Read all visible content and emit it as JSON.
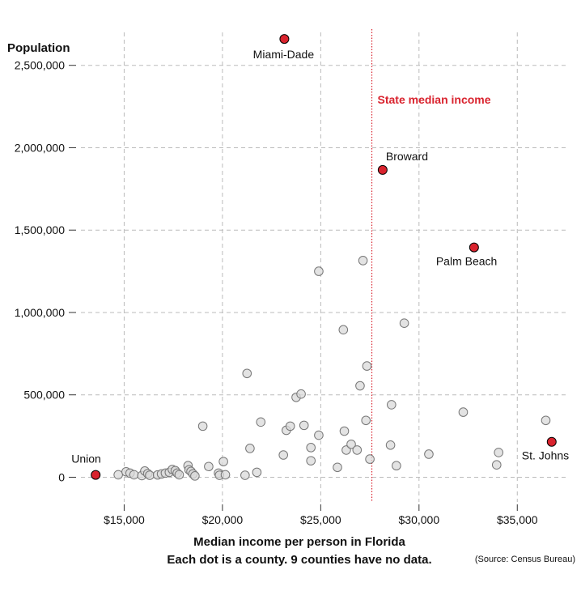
{
  "chart_data": {
    "type": "scatter",
    "title": "Population",
    "xlabel": "Median income per person in Florida",
    "subtitle": "Each dot is a county. 9 counties have no data.",
    "source": "(Source: Census Bureau)",
    "xlim": [
      12800,
      37500
    ],
    "ylim": [
      -150000,
      2700000
    ],
    "x_ticks": [
      15000,
      20000,
      25000,
      30000,
      35000
    ],
    "x_tick_labels": [
      "$15,000",
      "$20,000",
      "$25,000",
      "$30,000",
      "$35,000"
    ],
    "y_ticks": [
      0,
      500000,
      1000000,
      1500000,
      2000000,
      2500000
    ],
    "y_tick_labels": [
      "0",
      "500,000",
      "1,000,000",
      "1,500,000",
      "2,000,000",
      "2,500,000"
    ],
    "grid": true,
    "reference_line": {
      "x": 27600,
      "label": "State median income",
      "color": "#d9232e"
    },
    "colors": {
      "highlight": "#d9232e",
      "dot_fill": "#d9d9d9",
      "dot_stroke": "#777777",
      "grid": "#bbbbbb"
    },
    "highlighted": [
      {
        "name": "Miami-Dade",
        "x": 23150,
        "y": 2660000
      },
      {
        "name": "Broward",
        "x": 28150,
        "y": 1865000
      },
      {
        "name": "Palm Beach",
        "x": 32800,
        "y": 1395000
      },
      {
        "name": "St. Johns",
        "x": 36750,
        "y": 215000
      },
      {
        "name": "Union",
        "x": 13550,
        "y": 14000
      }
    ],
    "points": [
      {
        "x": 14700,
        "y": 15000
      },
      {
        "x": 15100,
        "y": 33000
      },
      {
        "x": 15300,
        "y": 25000
      },
      {
        "x": 15500,
        "y": 15000
      },
      {
        "x": 15900,
        "y": 10000
      },
      {
        "x": 16050,
        "y": 38000
      },
      {
        "x": 16200,
        "y": 22000
      },
      {
        "x": 16300,
        "y": 12000
      },
      {
        "x": 16700,
        "y": 14000
      },
      {
        "x": 16900,
        "y": 20000
      },
      {
        "x": 17100,
        "y": 25000
      },
      {
        "x": 17300,
        "y": 30000
      },
      {
        "x": 17450,
        "y": 47000
      },
      {
        "x": 17600,
        "y": 40000
      },
      {
        "x": 17700,
        "y": 25000
      },
      {
        "x": 17800,
        "y": 15000
      },
      {
        "x": 18250,
        "y": 70000
      },
      {
        "x": 18300,
        "y": 45000
      },
      {
        "x": 18400,
        "y": 35000
      },
      {
        "x": 18500,
        "y": 20000
      },
      {
        "x": 18600,
        "y": 8000
      },
      {
        "x": 19000,
        "y": 310000
      },
      {
        "x": 19300,
        "y": 65000
      },
      {
        "x": 19800,
        "y": 25000
      },
      {
        "x": 19850,
        "y": 12000
      },
      {
        "x": 20050,
        "y": 95000
      },
      {
        "x": 20150,
        "y": 15000
      },
      {
        "x": 21150,
        "y": 12000
      },
      {
        "x": 21250,
        "y": 630000
      },
      {
        "x": 21400,
        "y": 175000
      },
      {
        "x": 21750,
        "y": 30000
      },
      {
        "x": 21950,
        "y": 335000
      },
      {
        "x": 23100,
        "y": 135000
      },
      {
        "x": 23250,
        "y": 285000
      },
      {
        "x": 23450,
        "y": 310000
      },
      {
        "x": 23750,
        "y": 485000
      },
      {
        "x": 24000,
        "y": 505000
      },
      {
        "x": 24150,
        "y": 315000
      },
      {
        "x": 24500,
        "y": 180000
      },
      {
        "x": 24500,
        "y": 100000
      },
      {
        "x": 24900,
        "y": 255000
      },
      {
        "x": 24900,
        "y": 1250000
      },
      {
        "x": 25850,
        "y": 60000
      },
      {
        "x": 26150,
        "y": 895000
      },
      {
        "x": 26200,
        "y": 280000
      },
      {
        "x": 26300,
        "y": 165000
      },
      {
        "x": 26550,
        "y": 200000
      },
      {
        "x": 26850,
        "y": 165000
      },
      {
        "x": 27000,
        "y": 555000
      },
      {
        "x": 27150,
        "y": 1315000
      },
      {
        "x": 27350,
        "y": 675000
      },
      {
        "x": 27300,
        "y": 345000
      },
      {
        "x": 27500,
        "y": 110000
      },
      {
        "x": 28550,
        "y": 195000
      },
      {
        "x": 28600,
        "y": 440000
      },
      {
        "x": 28850,
        "y": 70000
      },
      {
        "x": 29250,
        "y": 935000
      },
      {
        "x": 30500,
        "y": 140000
      },
      {
        "x": 32250,
        "y": 395000
      },
      {
        "x": 33950,
        "y": 75000
      },
      {
        "x": 34050,
        "y": 150000
      },
      {
        "x": 36450,
        "y": 345000
      }
    ]
  }
}
